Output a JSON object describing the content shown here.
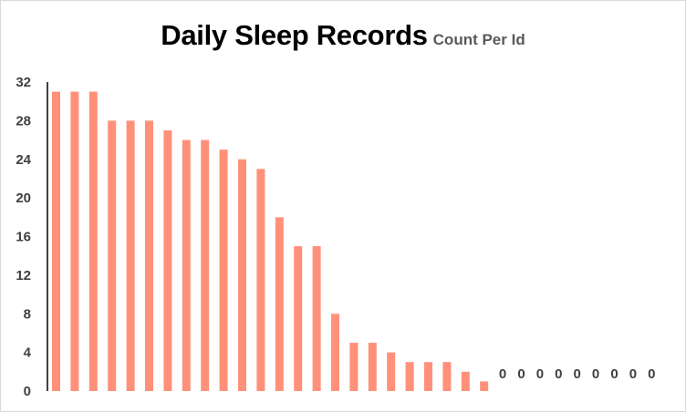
{
  "chart_data": {
    "type": "bar",
    "title": "Daily Sleep Records",
    "subtitle": "Count Per Id",
    "xlabel": "",
    "ylabel": "",
    "ylim": [
      0,
      32
    ],
    "yticks": [
      0,
      4,
      8,
      12,
      16,
      20,
      24,
      28,
      32
    ],
    "grid": false,
    "legend": "none",
    "bar_color": "#FF917A",
    "values": [
      31,
      31,
      31,
      28,
      28,
      28,
      27,
      26,
      26,
      25,
      24,
      23,
      18,
      15,
      15,
      8,
      5,
      5,
      4,
      3,
      3,
      3,
      2,
      1,
      0,
      0,
      0,
      0,
      0,
      0,
      0,
      0,
      0
    ],
    "data_labels": [
      "",
      "",
      "",
      "",
      "",
      "",
      "",
      "",
      "",
      "",
      "",
      "",
      "",
      "",
      "",
      "",
      "",
      "",
      "",
      "",
      "",
      "",
      "",
      "",
      "0",
      "0",
      "0",
      "0",
      "0",
      "0",
      "0",
      "0",
      "0"
    ]
  }
}
